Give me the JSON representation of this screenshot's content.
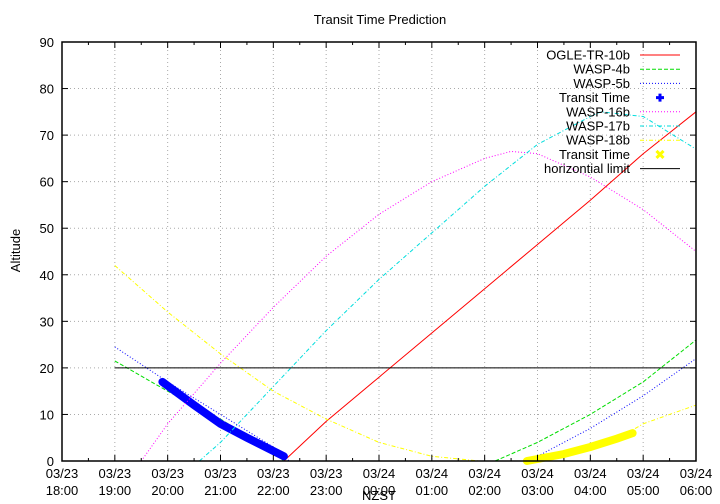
{
  "chart_data": {
    "type": "line",
    "title": "Transit Time Prediction",
    "xlabel": "NZST",
    "ylabel": "Altitude",
    "ylim": [
      0,
      90
    ],
    "xlim_hours": [
      0,
      12
    ],
    "grid": true,
    "legend_position": "top-right-inside",
    "yticks": [
      0,
      10,
      20,
      30,
      40,
      50,
      60,
      70,
      80,
      90
    ],
    "xticks": [
      {
        "date": "03/23",
        "time": "18:00"
      },
      {
        "date": "03/23",
        "time": "19:00"
      },
      {
        "date": "03/23",
        "time": "20:00"
      },
      {
        "date": "03/23",
        "time": "21:00"
      },
      {
        "date": "03/23",
        "time": "22:00"
      },
      {
        "date": "03/23",
        "time": "23:00"
      },
      {
        "date": "03/24",
        "time": "00:00"
      },
      {
        "date": "03/24",
        "time": "01:00"
      },
      {
        "date": "03/24",
        "time": "02:00"
      },
      {
        "date": "03/24",
        "time": "03:00"
      },
      {
        "date": "03/24",
        "time": "04:00"
      },
      {
        "date": "03/24",
        "time": "05:00"
      },
      {
        "date": "03/24",
        "time": "06:00"
      }
    ],
    "x_unit_note": "x values are hours after 03/23 18:00",
    "series": [
      {
        "name": "OGLE-TR-10b",
        "color": "#ff0000",
        "style": "solid",
        "x": [
          4.2,
          5,
          6,
          7,
          8,
          9,
          10,
          11,
          12
        ],
        "y": [
          0,
          8.5,
          18,
          27.5,
          37,
          46.5,
          56,
          66,
          75
        ]
      },
      {
        "name": "WASP-4b",
        "color": "#00dd00",
        "style": "dashed",
        "x": [
          1.0,
          2,
          3,
          4,
          4.2,
          null,
          8.2,
          9,
          10,
          11,
          12
        ],
        "y": [
          21.5,
          15,
          9,
          2,
          0,
          null,
          0,
          4,
          10,
          17,
          26
        ]
      },
      {
        "name": "WASP-5b",
        "color": "#0000ff",
        "style": "dotted",
        "x": [
          1.0,
          2,
          3,
          4,
          4.3,
          null,
          8.8,
          9,
          10,
          11,
          12
        ],
        "y": [
          24.5,
          17,
          10,
          3,
          0,
          null,
          0,
          1,
          7,
          14,
          22
        ]
      },
      {
        "name": "Transit Time",
        "color": "#0000ff",
        "style": "thick-points",
        "x": [
          1.9,
          2.5,
          3,
          3.5,
          4.2
        ],
        "y": [
          17,
          12,
          8,
          5,
          1
        ]
      },
      {
        "name": "WASP-16b",
        "color": "#ff00ff",
        "style": "dotted",
        "x": [
          1.5,
          2,
          3,
          4,
          5,
          6,
          7,
          8,
          8.5,
          9,
          10,
          11,
          12
        ],
        "y": [
          0,
          8,
          21,
          33,
          44,
          53,
          60,
          65,
          66.5,
          66,
          61,
          54,
          45
        ]
      },
      {
        "name": "WASP-17b",
        "color": "#00dddd",
        "style": "dash-dot",
        "x": [
          2.6,
          3,
          4,
          5,
          6,
          7,
          8,
          9,
          10,
          10.2,
          11,
          12
        ],
        "y": [
          0,
          4,
          16,
          28,
          39,
          49,
          59,
          68,
          74,
          75,
          74,
          67
        ]
      },
      {
        "name": "WASP-18b",
        "color": "#ffff00",
        "style": "dash-dot",
        "x": [
          1.0,
          2,
          3,
          4,
          5,
          6,
          7,
          7.9,
          null,
          10.7,
          11,
          12
        ],
        "y": [
          42,
          32,
          23,
          15,
          9,
          4,
          1,
          0,
          null,
          6,
          8,
          12
        ]
      },
      {
        "name": "Transit Time",
        "color": "#ffff00",
        "style": "thick-points",
        "x": [
          8.8,
          9.5,
          10,
          10.5,
          10.8
        ],
        "y": [
          0,
          1.5,
          3,
          4.8,
          6
        ]
      },
      {
        "name": "horizontial limit",
        "color": "#000000",
        "style": "solid",
        "x": [
          1.0,
          12
        ],
        "y": [
          20,
          20
        ]
      }
    ]
  },
  "legend": [
    {
      "label": "OGLE-TR-10b",
      "color": "#ff0000",
      "style": "solid"
    },
    {
      "label": "WASP-4b",
      "color": "#00dd00",
      "style": "dashed"
    },
    {
      "label": "WASP-5b",
      "color": "#0000ff",
      "style": "dotted"
    },
    {
      "label": "Transit Time",
      "color": "#0000ff",
      "style": "point-plus"
    },
    {
      "label": "WASP-16b",
      "color": "#ff00ff",
      "style": "dotted"
    },
    {
      "label": "WASP-17b",
      "color": "#00dddd",
      "style": "dash-dot"
    },
    {
      "label": "WASP-18b",
      "color": "#ffff00",
      "style": "dash-dot"
    },
    {
      "label": "Transit Time",
      "color": "#ffff00",
      "style": "point-x"
    },
    {
      "label": "horizontial limit",
      "color": "#000000",
      "style": "solid"
    }
  ]
}
